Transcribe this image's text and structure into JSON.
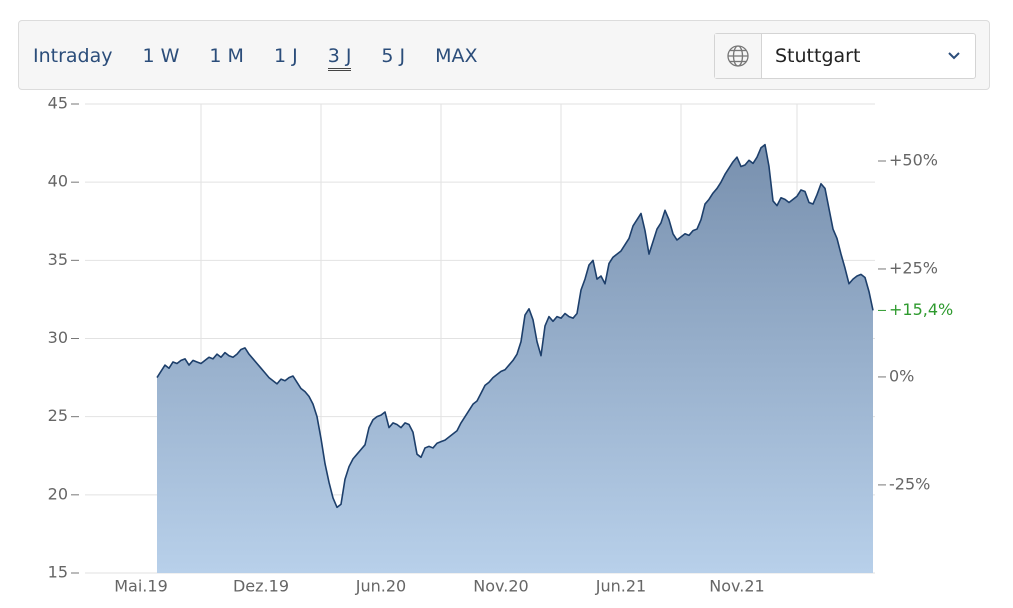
{
  "toolbar": {
    "tabs": [
      "Intraday",
      "1 W",
      "1 M",
      "1 J",
      "3 J",
      "5 J",
      "MAX"
    ],
    "selected": 4,
    "exchange": "Stuttgart"
  },
  "chart_data": {
    "type": "area",
    "categories": [
      null,
      null,
      null,
      null,
      null,
      null,
      null,
      null,
      null,
      null,
      null,
      null,
      null,
      null,
      "Mai.19",
      null,
      null,
      null,
      null,
      null,
      null,
      null,
      null,
      null,
      null,
      null,
      null,
      null,
      null,
      null,
      null,
      null,
      null,
      null,
      null,
      null,
      null,
      null,
      null,
      null,
      null,
      null,
      null,
      null,
      "Dez.19",
      null,
      null,
      null,
      null,
      null,
      null,
      null,
      null,
      null,
      null,
      null,
      null,
      null,
      null,
      null,
      null,
      null,
      null,
      null,
      null,
      null,
      null,
      null,
      null,
      null,
      null,
      null,
      null,
      null,
      "Jun.20",
      null,
      null,
      null,
      null,
      null,
      null,
      null,
      null,
      null,
      null,
      null,
      null,
      null,
      null,
      null,
      null,
      null,
      null,
      null,
      null,
      null,
      null,
      null,
      null,
      null,
      null,
      null,
      null,
      null,
      "Nov.20",
      null,
      null,
      null,
      null,
      null,
      null,
      null,
      null,
      null,
      null,
      null,
      null,
      null,
      null,
      null,
      null,
      null,
      null,
      null,
      null,
      null,
      null,
      null,
      null,
      null,
      null,
      null,
      null,
      null,
      "Jun.21",
      null,
      null,
      null,
      null,
      null,
      null,
      null,
      null,
      null,
      null,
      null,
      null,
      null,
      null,
      null,
      null,
      null,
      null,
      null,
      null,
      null,
      null,
      null,
      null,
      null,
      null,
      null,
      null,
      "Nov.21",
      null,
      null,
      null,
      null,
      null,
      null,
      null,
      null,
      null,
      null,
      null,
      null,
      null,
      null,
      null,
      null,
      null,
      null,
      null,
      null,
      null,
      null,
      null,
      null,
      null,
      null,
      null,
      null,
      null,
      null,
      null,
      null,
      null,
      null
    ],
    "values": [
      null,
      null,
      null,
      null,
      null,
      null,
      null,
      null,
      null,
      null,
      null,
      null,
      null,
      null,
      null,
      null,
      null,
      null,
      27.5,
      27.9,
      28.3,
      28.1,
      28.5,
      28.4,
      28.6,
      28.7,
      28.3,
      28.6,
      28.5,
      28.4,
      28.6,
      28.8,
      28.7,
      29.0,
      28.8,
      29.1,
      28.9,
      28.8,
      29.0,
      29.3,
      29.4,
      29.0,
      28.7,
      28.4,
      28.1,
      27.8,
      27.5,
      27.3,
      27.1,
      27.4,
      27.3,
      27.5,
      27.6,
      27.2,
      26.8,
      26.6,
      26.3,
      25.8,
      25.0,
      23.6,
      22.0,
      20.8,
      19.8,
      19.2,
      19.4,
      21.0,
      21.8,
      22.3,
      22.6,
      22.9,
      23.2,
      24.3,
      24.8,
      25.0,
      25.1,
      25.3,
      24.3,
      24.6,
      24.5,
      24.3,
      24.6,
      24.5,
      24.0,
      22.6,
      22.4,
      23.0,
      23.1,
      23.0,
      23.3,
      23.4,
      23.5,
      23.7,
      23.9,
      24.1,
      24.6,
      25.0,
      25.4,
      25.8,
      26.0,
      26.5,
      27.0,
      27.2,
      27.5,
      27.7,
      27.9,
      28.0,
      28.3,
      28.6,
      29.0,
      29.8,
      31.5,
      31.9,
      31.2,
      29.8,
      28.9,
      30.8,
      31.4,
      31.1,
      31.4,
      31.3,
      31.6,
      31.4,
      31.3,
      31.6,
      33.1,
      33.8,
      34.7,
      35.0,
      33.8,
      34.0,
      33.5,
      34.8,
      35.2,
      35.4,
      35.6,
      36.0,
      36.4,
      37.2,
      37.6,
      38.0,
      36.9,
      35.4,
      36.2,
      37.0,
      37.4,
      38.2,
      37.6,
      36.7,
      36.3,
      36.5,
      36.7,
      36.6,
      36.9,
      37.0,
      37.6,
      38.6,
      38.9,
      39.3,
      39.6,
      40.0,
      40.5,
      40.9,
      41.3,
      41.6,
      41.0,
      41.1,
      41.4,
      41.2,
      41.6,
      42.2,
      42.4,
      41.0,
      38.8,
      38.5,
      39.0,
      38.9,
      38.7,
      38.9,
      39.1,
      39.5,
      39.4,
      38.7,
      38.6,
      39.2,
      39.9,
      39.6,
      38.3,
      37.0,
      36.4,
      35.4,
      34.5,
      33.5,
      33.8,
      34.0,
      34.1,
      33.9,
      33.0,
      31.8
    ],
    "color": "#1d3f6b",
    "ylim": [
      15,
      45
    ],
    "yticks": [
      15,
      20,
      25,
      30,
      35,
      40,
      45
    ],
    "y2lim": [
      -45.4,
      63.2
    ],
    "y2ticks": [
      {
        "value": -25,
        "label": "-25%"
      },
      {
        "value": 0,
        "label": "0%"
      },
      {
        "value": 25,
        "label": "+25%"
      },
      {
        "value": 50,
        "label": "+50%"
      }
    ],
    "last_change": {
      "value": 15.4,
      "label": "+15,4%",
      "color": "#2e9a2e"
    },
    "grid": true
  }
}
